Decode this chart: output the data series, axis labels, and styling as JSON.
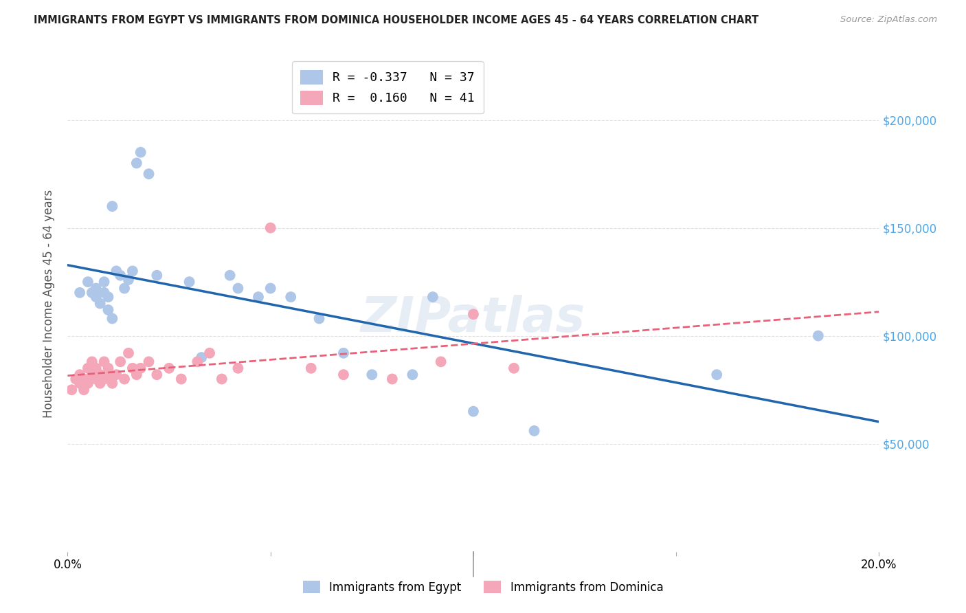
{
  "title": "IMMIGRANTS FROM EGYPT VS IMMIGRANTS FROM DOMINICA HOUSEHOLDER INCOME AGES 45 - 64 YEARS CORRELATION CHART",
  "source": "Source: ZipAtlas.com",
  "ylabel": "Householder Income Ages 45 - 64 years",
  "xlim": [
    0.0,
    0.2
  ],
  "ylim": [
    0,
    230000
  ],
  "egypt_color": "#aec6e8",
  "dominica_color": "#f4a7b9",
  "egypt_line_color": "#2166ac",
  "dominica_line_color": "#e8617a",
  "R_egypt": "-0.337",
  "N_egypt": 37,
  "R_dominica": "0.160",
  "N_dominica": 41,
  "egypt_x": [
    0.003,
    0.005,
    0.006,
    0.007,
    0.007,
    0.008,
    0.009,
    0.009,
    0.01,
    0.01,
    0.011,
    0.011,
    0.012,
    0.013,
    0.014,
    0.015,
    0.016,
    0.017,
    0.018,
    0.02,
    0.022,
    0.03,
    0.033,
    0.04,
    0.042,
    0.047,
    0.05,
    0.055,
    0.062,
    0.068,
    0.075,
    0.085,
    0.09,
    0.1,
    0.115,
    0.16,
    0.185
  ],
  "egypt_y": [
    120000,
    125000,
    120000,
    122000,
    118000,
    115000,
    120000,
    125000,
    118000,
    112000,
    108000,
    160000,
    130000,
    128000,
    122000,
    126000,
    130000,
    180000,
    185000,
    175000,
    128000,
    125000,
    90000,
    128000,
    122000,
    118000,
    122000,
    118000,
    108000,
    92000,
    82000,
    82000,
    118000,
    65000,
    56000,
    82000,
    100000
  ],
  "dominica_x": [
    0.001,
    0.002,
    0.003,
    0.003,
    0.004,
    0.004,
    0.005,
    0.005,
    0.006,
    0.006,
    0.007,
    0.007,
    0.008,
    0.008,
    0.009,
    0.009,
    0.01,
    0.01,
    0.011,
    0.012,
    0.013,
    0.014,
    0.015,
    0.016,
    0.017,
    0.018,
    0.02,
    0.022,
    0.025,
    0.028,
    0.032,
    0.035,
    0.038,
    0.042,
    0.05,
    0.06,
    0.068,
    0.08,
    0.092,
    0.1,
    0.11
  ],
  "dominica_y": [
    75000,
    80000,
    82000,
    78000,
    80000,
    75000,
    85000,
    78000,
    82000,
    88000,
    80000,
    85000,
    78000,
    82000,
    88000,
    80000,
    82000,
    85000,
    78000,
    82000,
    88000,
    80000,
    92000,
    85000,
    82000,
    85000,
    88000,
    82000,
    85000,
    80000,
    88000,
    92000,
    80000,
    85000,
    150000,
    85000,
    82000,
    80000,
    88000,
    110000,
    85000
  ],
  "watermark": "ZIPatlas",
  "background_color": "#ffffff",
  "grid_color": "#e0e0e0"
}
